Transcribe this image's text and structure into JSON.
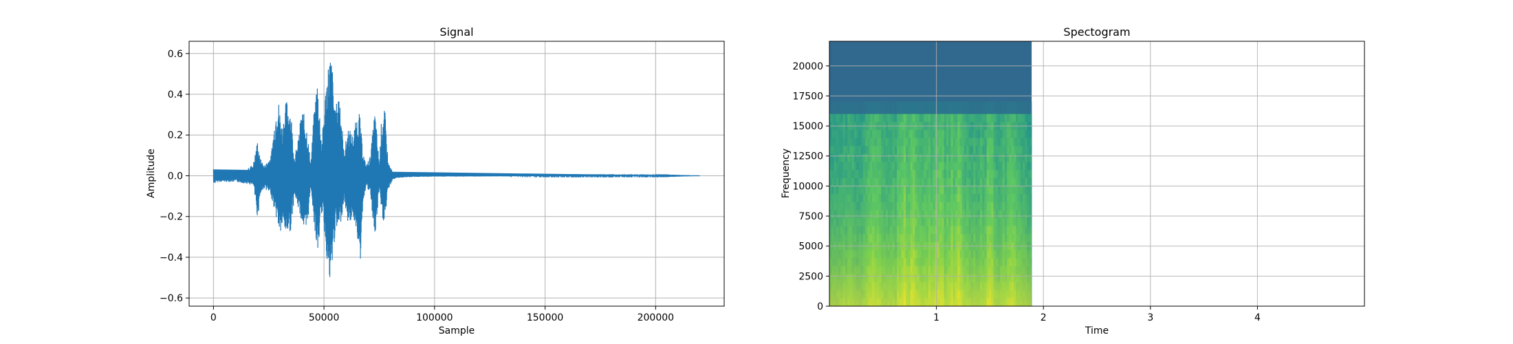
{
  "chart_data": [
    {
      "type": "line",
      "title": "Signal",
      "xlabel": "Sample",
      "ylabel": "Amplitude",
      "xlim": [
        -11000,
        231000
      ],
      "ylim": [
        -0.64,
        0.66
      ],
      "xticks": [
        0,
        50000,
        100000,
        150000,
        200000
      ],
      "yticks": [
        -0.6,
        -0.4,
        -0.2,
        0.0,
        0.2,
        0.4,
        0.6
      ],
      "xtick_labels": [
        "0",
        "50000",
        "100000",
        "150000",
        "200000"
      ],
      "ytick_labels": [
        "−0.6",
        "−0.4",
        "−0.2",
        "0.0",
        "0.2",
        "0.4",
        "0.6"
      ],
      "grid": true,
      "color": "#1f77b4",
      "series": [
        {
          "x": [
            0,
            2000,
            5000,
            10000,
            15000,
            18000,
            20000,
            21000,
            23000,
            26000,
            29000,
            30000,
            31000,
            33000,
            35000,
            36500,
            38000,
            40000,
            42000,
            44000,
            45500,
            47000,
            49000,
            51000,
            52500,
            53500,
            55000,
            57000,
            59000,
            61000,
            63000,
            65000,
            66000,
            67500,
            69000,
            71000,
            73000,
            75000,
            76000,
            77500,
            79000,
            81000,
            83000,
            90000,
            100000,
            150000,
            200000,
            220000
          ],
          "upper": [
            0.04,
            0.03,
            0.03,
            0.02,
            0.03,
            0.06,
            0.18,
            0.09,
            0.05,
            0.1,
            0.41,
            0.33,
            0.24,
            0.38,
            0.33,
            0.1,
            0.15,
            0.34,
            0.26,
            0.06,
            0.32,
            0.49,
            0.16,
            0.48,
            0.6,
            0.58,
            0.32,
            0.44,
            0.12,
            0.24,
            0.2,
            0.3,
            0.32,
            0.13,
            0.05,
            0.1,
            0.33,
            0.06,
            0.28,
            0.33,
            0.07,
            0.02,
            0.01,
            0.006,
            0.004,
            0.002,
            0.002,
            0.0
          ],
          "lower": [
            -0.04,
            -0.03,
            -0.03,
            -0.03,
            -0.04,
            -0.05,
            -0.22,
            -0.1,
            -0.06,
            -0.1,
            -0.24,
            -0.3,
            -0.26,
            -0.29,
            -0.27,
            -0.1,
            -0.15,
            -0.23,
            -0.32,
            -0.05,
            -0.24,
            -0.4,
            -0.17,
            -0.38,
            -0.57,
            -0.48,
            -0.28,
            -0.27,
            -0.12,
            -0.25,
            -0.2,
            -0.28,
            -0.53,
            -0.14,
            -0.05,
            -0.1,
            -0.33,
            -0.06,
            -0.22,
            -0.23,
            -0.07,
            -0.02,
            -0.01,
            -0.006,
            -0.004,
            -0.002,
            -0.002,
            0.0
          ]
        }
      ]
    },
    {
      "type": "heatmap",
      "title": "Spectogram",
      "xlabel": "Time",
      "ylabel": "Frequency",
      "xlim": [
        0,
        5.0
      ],
      "ylim": [
        0,
        22050
      ],
      "xticks": [
        1,
        2,
        3,
        4
      ],
      "yticks": [
        0,
        2500,
        5000,
        7500,
        10000,
        12500,
        15000,
        17500,
        20000
      ],
      "xtick_labels": [
        "1",
        "2",
        "3",
        "4"
      ],
      "ytick_labels": [
        "0",
        "2500",
        "5000",
        "7500",
        "10000",
        "12500",
        "15000",
        "17500",
        "20000"
      ],
      "grid": true,
      "colormap": "viridis",
      "image_extent": {
        "time": [
          0,
          1.89
        ],
        "frequency": [
          0,
          22050
        ]
      },
      "high_freq_cutoff": 16000,
      "band_intensity": [
        {
          "t": 0.0,
          "level": 0.35
        },
        {
          "t": 0.1,
          "level": 0.45
        },
        {
          "t": 0.2,
          "level": 0.55
        },
        {
          "t": 0.3,
          "level": 0.4
        },
        {
          "t": 0.4,
          "level": 0.75
        },
        {
          "t": 0.5,
          "level": 0.6
        },
        {
          "t": 0.6,
          "level": 0.55
        },
        {
          "t": 0.7,
          "level": 0.85
        },
        {
          "t": 0.8,
          "level": 0.8
        },
        {
          "t": 0.9,
          "level": 0.65
        },
        {
          "t": 1.0,
          "level": 0.85
        },
        {
          "t": 1.1,
          "level": 0.7
        },
        {
          "t": 1.2,
          "level": 0.9
        },
        {
          "t": 1.3,
          "level": 0.6
        },
        {
          "t": 1.4,
          "level": 0.55
        },
        {
          "t": 1.5,
          "level": 0.85
        },
        {
          "t": 1.6,
          "level": 0.5
        },
        {
          "t": 1.7,
          "level": 0.8
        },
        {
          "t": 1.8,
          "level": 0.45
        },
        {
          "t": 1.89,
          "level": 0.35
        }
      ]
    }
  ]
}
